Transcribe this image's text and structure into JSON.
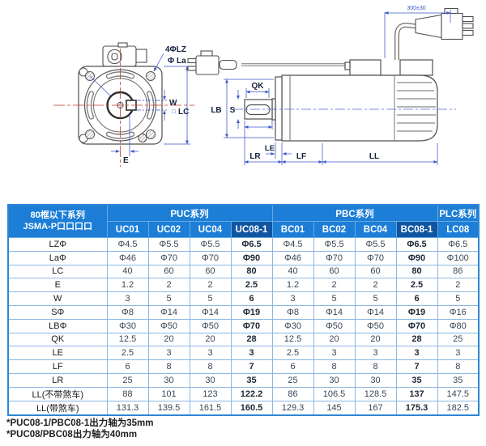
{
  "diagram": {
    "front_view": {
      "labels": {
        "mounting_holes": "4ΦLZ",
        "bolt_circle": "Φ La",
        "keyway_width": "W",
        "frame_square_symbol": "□",
        "frame_side": "LC",
        "edge_offset": "E"
      }
    },
    "side_view": {
      "labels": {
        "qk": "QK",
        "lb": "LB",
        "s": "S",
        "le": "LE",
        "lr": "LR",
        "lf": "LF",
        "ll": "LL",
        "cable_length": "300±30"
      }
    },
    "colors": {
      "outline": "#4f4f4f",
      "dimension_line": "#3a55c8",
      "centerline_red": "#c0392b",
      "label_text": "#14213d"
    }
  },
  "table": {
    "corner_header": [
      "80框以下系列",
      "JSMA-P口口口口"
    ],
    "groups": [
      {
        "label": "PUC系列",
        "span": 4
      },
      {
        "label": "PBC系列",
        "span": 4
      },
      {
        "label": "PLC系列",
        "span": 1
      }
    ],
    "columns": [
      {
        "label": "UC01"
      },
      {
        "label": "UC02"
      },
      {
        "label": "UC04"
      },
      {
        "label": "UC08-1",
        "highlight": true
      },
      {
        "label": "BC01"
      },
      {
        "label": "BC02"
      },
      {
        "label": "BC04"
      },
      {
        "label": "BC08-1",
        "highlight": true
      },
      {
        "label": "LC08"
      }
    ],
    "rows": [
      {
        "label": "LZΦ",
        "values": [
          "Φ4.5",
          "Φ5.5",
          "Φ5.5",
          "Φ6.5",
          "Φ4.5",
          "Φ5.5",
          "Φ5.5",
          "Φ6.5",
          "Φ6.5"
        ]
      },
      {
        "label": "LaΦ",
        "values": [
          "Φ46",
          "Φ70",
          "Φ70",
          "Φ90",
          "Φ46",
          "Φ70",
          "Φ70",
          "Φ90",
          "Φ100"
        ]
      },
      {
        "label": "LC",
        "values": [
          "40",
          "60",
          "60",
          "80",
          "40",
          "60",
          "60",
          "80",
          "86"
        ]
      },
      {
        "label": "E",
        "values": [
          "1.2",
          "2",
          "2",
          "2.5",
          "1.2",
          "2",
          "2",
          "2.5",
          "2"
        ]
      },
      {
        "label": "W",
        "values": [
          "3",
          "5",
          "5",
          "6",
          "3",
          "5",
          "5",
          "6",
          "5"
        ]
      },
      {
        "label": "SΦ",
        "values": [
          "Φ8",
          "Φ14",
          "Φ14",
          "Φ19",
          "Φ8",
          "Φ14",
          "Φ14",
          "Φ19",
          "Φ16"
        ]
      },
      {
        "label": "LBΦ",
        "values": [
          "Φ30",
          "Φ50",
          "Φ50",
          "Φ70",
          "Φ30",
          "Φ50",
          "Φ50",
          "Φ70",
          "Φ80"
        ]
      },
      {
        "label": "QK",
        "values": [
          "12.5",
          "20",
          "20",
          "28",
          "12.5",
          "20",
          "20",
          "28",
          "25"
        ]
      },
      {
        "label": "LE",
        "values": [
          "2.5",
          "3",
          "3",
          "3",
          "2.5",
          "3",
          "3",
          "3",
          "3"
        ]
      },
      {
        "label": "LF",
        "values": [
          "6",
          "8",
          "8",
          "7",
          "6",
          "8",
          "8",
          "7",
          "8"
        ]
      },
      {
        "label": "LR",
        "values": [
          "25",
          "30",
          "30",
          "35",
          "25",
          "30",
          "30",
          "35",
          "35"
        ]
      },
      {
        "label": "LL(不带煞车)",
        "values": [
          "88",
          "101",
          "123",
          "122.2",
          "86",
          "106.5",
          "128.5",
          "137",
          "147.5"
        ]
      },
      {
        "label": "LL(带煞车)",
        "values": [
          "131.3",
          "139.5",
          "161.5",
          "160.5",
          "129.3",
          "145",
          "167",
          "175.3",
          "182.5"
        ]
      }
    ],
    "colors": {
      "header_bg": "#1c7ed6",
      "header_highlight_bg": "#0f55a2",
      "grid_line": "#8ab8e3",
      "outer_border": "#2e86d4",
      "header_text": "#ffffff"
    }
  },
  "notes": [
    "*PUC08-1/PBC08-1出力轴为35mm",
    "*PUC08/PBC08出力轴为40mm"
  ]
}
